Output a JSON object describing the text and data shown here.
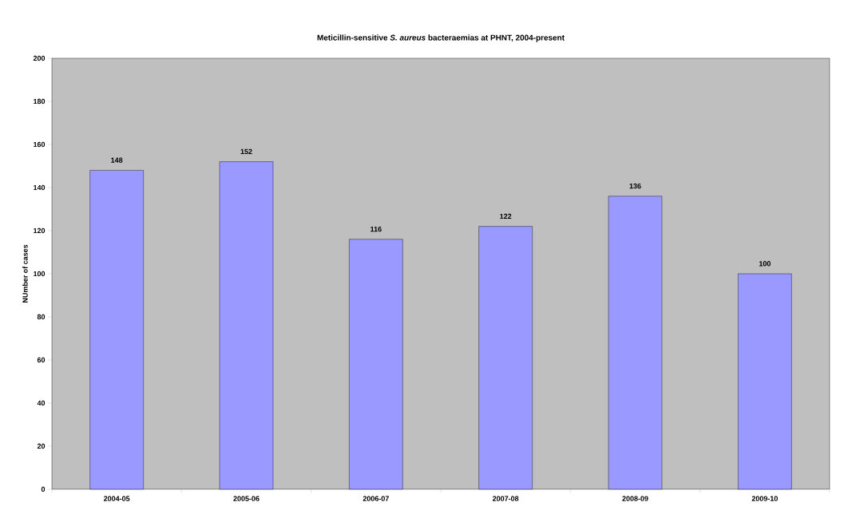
{
  "chart_data": {
    "type": "bar",
    "title": "Meticillin-sensitive *S. aureus* bacteraemias at PHNT, 2004-present",
    "ylabel": "NUmber of cases",
    "categories": [
      "2004-05",
      "2005-06",
      "2006-07",
      "2007-08",
      "2008-09",
      "2009-10"
    ],
    "values": [
      148,
      152,
      116,
      122,
      136,
      100
    ],
    "color": "#9999ff",
    "ylim": [
      0,
      200
    ],
    "yticks": [
      0,
      20,
      40,
      60,
      80,
      100,
      120,
      140,
      160,
      180,
      200
    ],
    "data_labels": true,
    "grid": false
  }
}
